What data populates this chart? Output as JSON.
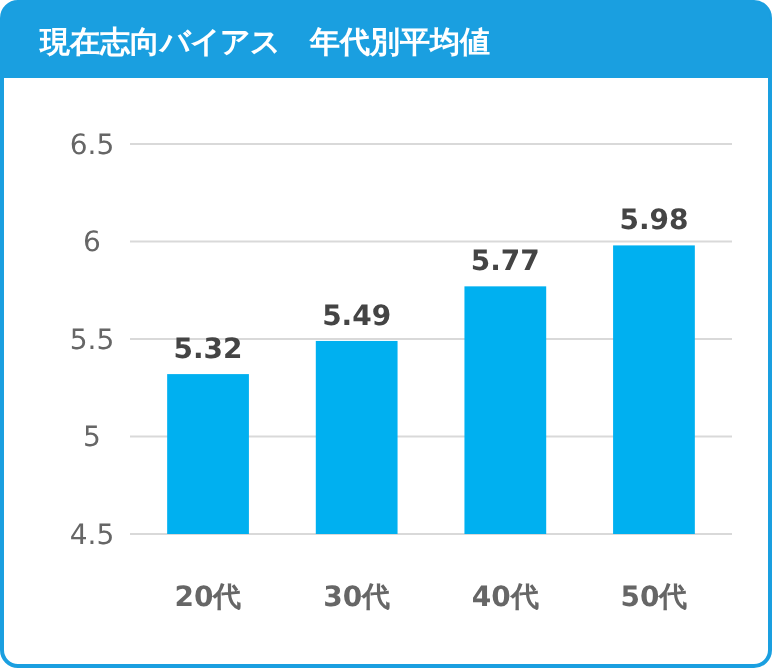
{
  "chart_data": {
    "type": "bar",
    "title": "現在志向バイアス　年代別平均値",
    "categories": [
      "20代",
      "30代",
      "40代",
      "50代"
    ],
    "values": [
      5.32,
      5.49,
      5.77,
      5.98
    ],
    "color": "#00b0f0",
    "ylim": [
      4.5,
      6.5
    ],
    "yticks": [
      4.5,
      5,
      5.5,
      6,
      6.5
    ],
    "grid": "y",
    "data_labels": true
  }
}
